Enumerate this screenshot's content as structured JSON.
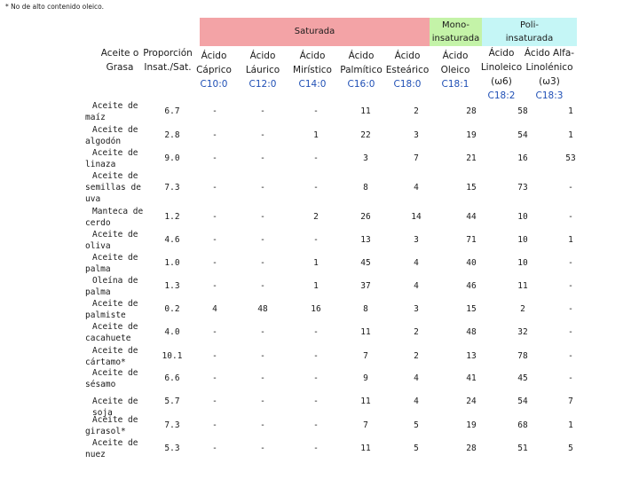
{
  "footnote": "* No de alto contenido oleico.",
  "groups": {
    "saturated": "Saturada",
    "mono_line1": "Mono-",
    "mono_line2": "insaturada",
    "poly_line1": "Poli-",
    "poly_line2": "insaturada"
  },
  "headers": {
    "fat_l1": "Aceite o",
    "fat_l2": "Grasa",
    "ratio_l1": "Proporción",
    "ratio_l2": "Insat./Sat.",
    "columns": [
      {
        "l1": "Ácido",
        "l2": "Cáprico",
        "code": "C10:0"
      },
      {
        "l1": "Ácido",
        "l2": "Láurico",
        "code": "C12:0"
      },
      {
        "l1": "Ácido",
        "l2": "Mirístico",
        "code": "C14:0"
      },
      {
        "l1": "Ácido",
        "l2": "Palmítico",
        "code": "C16:0"
      },
      {
        "l1": "Ácido",
        "l2": "Esteárico",
        "code": "C18:0"
      },
      {
        "l1": "Ácido",
        "l2": "Oleico",
        "code": "C18:1"
      }
    ],
    "linoleic": {
      "l1": "Ácido",
      "l2": "Linoleico",
      "l3": "(ω6)",
      "code": "C18:2"
    },
    "alpha": {
      "l1": "Ácido Alfa-",
      "l2": "Linolénico",
      "l3": "(ω3)",
      "code": "C18:3"
    }
  },
  "rows": [
    {
      "name": [
        "Aceite de",
        "maíz"
      ],
      "ratio": "6.7",
      "vals": [
        "-",
        "-",
        "-",
        "11",
        "2",
        "28",
        "58",
        "1"
      ]
    },
    {
      "name": [
        "Aceite de",
        "algodón"
      ],
      "ratio": "2.8",
      "vals": [
        "-",
        "-",
        "1",
        "22",
        "3",
        "19",
        "54",
        "1"
      ]
    },
    {
      "name": [
        "Aceite de",
        "linaza"
      ],
      "ratio": "9.0",
      "vals": [
        "-",
        "-",
        "-",
        "3",
        "7",
        "21",
        "16",
        "53"
      ]
    },
    {
      "name": [
        "Aceite de",
        "semillas de",
        "uva"
      ],
      "ratio": "7.3",
      "vals": [
        "-",
        "-",
        "-",
        "8",
        "4",
        "15",
        "73",
        "-"
      ]
    },
    {
      "name": [
        "Manteca de",
        "cerdo"
      ],
      "ratio": "1.2",
      "vals": [
        "-",
        "-",
        "2",
        "26",
        "14",
        "44",
        "10",
        "-"
      ]
    },
    {
      "name": [
        "Aceite de",
        "oliva"
      ],
      "ratio": "4.6",
      "vals": [
        "-",
        "-",
        "-",
        "13",
        "3",
        "71",
        "10",
        "1"
      ]
    },
    {
      "name": [
        "Aceite de",
        "palma"
      ],
      "ratio": "1.0",
      "vals": [
        "-",
        "-",
        "1",
        "45",
        "4",
        "40",
        "10",
        "-"
      ]
    },
    {
      "name": [
        "Oleína de",
        "palma"
      ],
      "ratio": "1.3",
      "vals": [
        "-",
        "-",
        "1",
        "37",
        "4",
        "46",
        "11",
        "-"
      ]
    },
    {
      "name": [
        "Aceite de",
        "palmiste"
      ],
      "ratio": "0.2",
      "vals": [
        "4",
        "48",
        "16",
        "8",
        "3",
        "15",
        "2",
        "-"
      ]
    },
    {
      "name": [
        "Aceite de",
        "cacahuete"
      ],
      "ratio": "4.0",
      "vals": [
        "-",
        "-",
        "-",
        "11",
        "2",
        "48",
        "32",
        "-"
      ]
    },
    {
      "name": [
        "Aceite de",
        "cártamo*"
      ],
      "ratio": "10.1",
      "vals": [
        "-",
        "-",
        "-",
        "7",
        "2",
        "13",
        "78",
        "-"
      ]
    },
    {
      "name": [
        "Aceite de",
        "sésamo"
      ],
      "ratio": "6.6",
      "vals": [
        "-",
        "-",
        "-",
        "9",
        "4",
        "41",
        "45",
        "-"
      ]
    },
    {
      "name": [
        "Aceite de soja"
      ],
      "ratio": "5.7",
      "vals": [
        "-",
        "-",
        "-",
        "11",
        "4",
        "24",
        "54",
        "7"
      ]
    },
    {
      "name": [
        "Aceite de",
        "girasol*"
      ],
      "ratio": "7.3",
      "vals": [
        "-",
        "-",
        "-",
        "7",
        "5",
        "19",
        "68",
        "1"
      ]
    },
    {
      "name": [
        "Aceite de",
        "nuez"
      ],
      "ratio": "5.3",
      "vals": [
        "-",
        "-",
        "-",
        "11",
        "5",
        "28",
        "51",
        "5"
      ]
    }
  ],
  "colors": {
    "saturated": "#f3a3a6",
    "mono": "#c4f3a8",
    "poly": "#c5f6f6",
    "code": "#1f4fb5"
  }
}
